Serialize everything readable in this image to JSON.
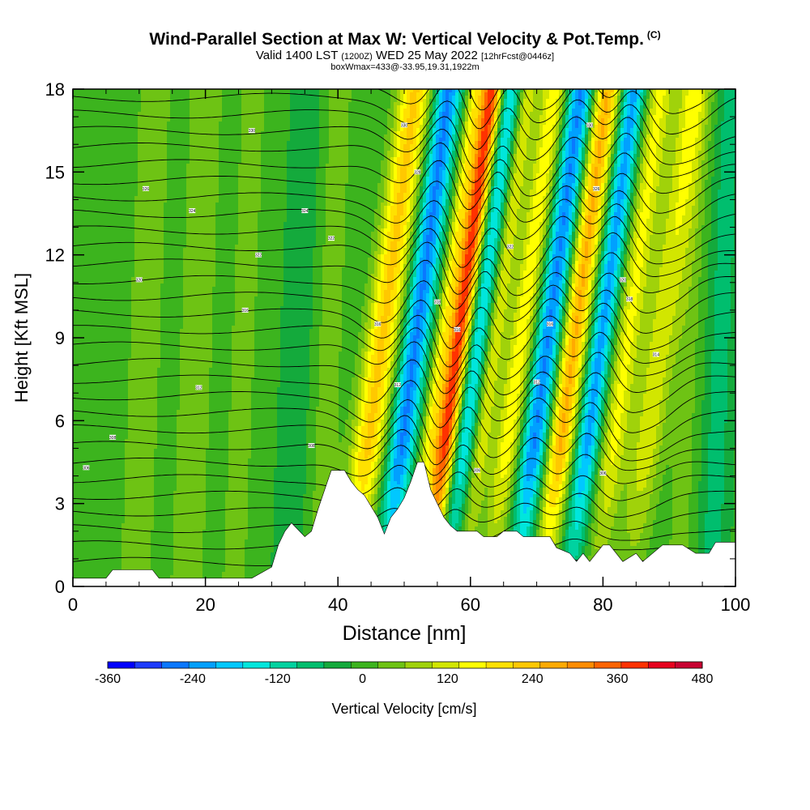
{
  "header": {
    "title": "Wind-Parallel Section at Max W: Vertical Velocity & Pot.Temp.",
    "copyright": "(C)",
    "valid_prefix": "Valid 1400 LST",
    "valid_z": "(1200Z)",
    "valid_date": "WED 25 May 2022",
    "valid_fcst": "[12hrFcst@0446z]",
    "subtitle2": "boxWmax=433@-33.95,19.31,1922m"
  },
  "chart_data": {
    "type": "heatmap",
    "xlabel": "Distance [nm]",
    "ylabel": "Height [Kft MSL]",
    "xlim": [
      0,
      100
    ],
    "ylim": [
      0,
      18
    ],
    "x_ticks": [
      0,
      20,
      40,
      60,
      80,
      100
    ],
    "x_tick_labels": [
      "0",
      "20",
      "40",
      "60",
      "80",
      "100"
    ],
    "y_ticks": [
      0,
      3,
      6,
      9,
      12,
      15,
      18
    ],
    "y_tick_labels": [
      "0",
      "3",
      "6",
      "9",
      "12",
      "15",
      "18"
    ],
    "colorbar": {
      "label": "Vertical Velocity [cm/s]",
      "min": -360,
      "max": 480,
      "step": 40,
      "tick_values": [
        -360,
        -240,
        -120,
        0,
        120,
        240,
        360,
        480
      ],
      "tick_labels": [
        "-360",
        "-240",
        "-120",
        "0",
        "120",
        "240",
        "360",
        "480"
      ],
      "colors": [
        "#0000ff",
        "#1e3cff",
        "#0a78ff",
        "#00a0ff",
        "#00c8ff",
        "#00e6dc",
        "#00d2a0",
        "#00be6e",
        "#14aa3c",
        "#3cb41e",
        "#6ec314",
        "#a0d20a",
        "#d2e600",
        "#ffff00",
        "#ffe100",
        "#ffc800",
        "#ffaa00",
        "#ff8c00",
        "#ff6400",
        "#ff3200",
        "#e6001e",
        "#c80032"
      ]
    },
    "terrain_heights_kft": [
      [
        0,
        0.3
      ],
      [
        5,
        0.3
      ],
      [
        6,
        0.6
      ],
      [
        12,
        0.6
      ],
      [
        13,
        0.3
      ],
      [
        25,
        0.3
      ],
      [
        27,
        0.3
      ],
      [
        30,
        0.7
      ],
      [
        31,
        1.5
      ],
      [
        32,
        2.0
      ],
      [
        33,
        2.3
      ],
      [
        35,
        1.8
      ],
      [
        36,
        2.0
      ],
      [
        37,
        2.8
      ],
      [
        38,
        3.5
      ],
      [
        39,
        4.2
      ],
      [
        41,
        4.2
      ],
      [
        42,
        3.8
      ],
      [
        43,
        3.5
      ],
      [
        44,
        3.3
      ],
      [
        45,
        2.9
      ],
      [
        46,
        2.5
      ],
      [
        47,
        1.9
      ],
      [
        48,
        2.5
      ],
      [
        49,
        2.8
      ],
      [
        50,
        3.2
      ],
      [
        51,
        3.8
      ],
      [
        52,
        4.5
      ],
      [
        53,
        4.5
      ],
      [
        54,
        3.5
      ],
      [
        55,
        3.0
      ],
      [
        56,
        2.5
      ],
      [
        57,
        2.2
      ],
      [
        58,
        2.0
      ],
      [
        61,
        2.0
      ],
      [
        62,
        1.8
      ],
      [
        64,
        1.8
      ],
      [
        65,
        2.0
      ],
      [
        67,
        2.0
      ],
      [
        68,
        1.8
      ],
      [
        72,
        1.8
      ],
      [
        73,
        1.4
      ],
      [
        75,
        1.2
      ],
      [
        76,
        0.9
      ],
      [
        77,
        1.2
      ],
      [
        78,
        0.9
      ],
      [
        80,
        1.5
      ],
      [
        81,
        1.5
      ],
      [
        83,
        0.9
      ],
      [
        85,
        1.2
      ],
      [
        86,
        0.9
      ],
      [
        89,
        1.5
      ],
      [
        92,
        1.5
      ],
      [
        94,
        1.2
      ],
      [
        96,
        1.2
      ],
      [
        97,
        1.6
      ],
      [
        100,
        1.6
      ]
    ],
    "theta_contour_labels": [
      {
        "x": 2,
        "y": 4.3,
        "text": "306"
      },
      {
        "x": 6,
        "y": 5.4,
        "text": "308"
      },
      {
        "x": 10,
        "y": 11.1,
        "text": "320"
      },
      {
        "x": 11,
        "y": 14.4,
        "text": "326"
      },
      {
        "x": 18,
        "y": 13.6,
        "text": "324"
      },
      {
        "x": 19,
        "y": 7.2,
        "text": "312"
      },
      {
        "x": 26,
        "y": 10.0,
        "text": "316"
      },
      {
        "x": 27,
        "y": 16.5,
        "text": "330"
      },
      {
        "x": 28,
        "y": 12.0,
        "text": "322"
      },
      {
        "x": 35,
        "y": 13.6,
        "text": "324"
      },
      {
        "x": 36,
        "y": 5.1,
        "text": "308"
      },
      {
        "x": 39,
        "y": 12.6,
        "text": "322"
      },
      {
        "x": 46,
        "y": 9.5,
        "text": "316"
      },
      {
        "x": 49,
        "y": 7.3,
        "text": "312"
      },
      {
        "x": 50,
        "y": 16.7,
        "text": "330"
      },
      {
        "x": 52,
        "y": 15.0,
        "text": "328"
      },
      {
        "x": 55,
        "y": 10.3,
        "text": "318"
      },
      {
        "x": 58,
        "y": 9.3,
        "text": "316"
      },
      {
        "x": 61,
        "y": 4.2,
        "text": "306"
      },
      {
        "x": 66,
        "y": 12.3,
        "text": "322"
      },
      {
        "x": 70,
        "y": 7.4,
        "text": "312"
      },
      {
        "x": 72,
        "y": 9.5,
        "text": "316"
      },
      {
        "x": 78,
        "y": 16.7,
        "text": "330"
      },
      {
        "x": 79,
        "y": 14.4,
        "text": "326"
      },
      {
        "x": 80,
        "y": 4.1,
        "text": "306"
      },
      {
        "x": 83,
        "y": 11.1,
        "text": "320"
      },
      {
        "x": 84,
        "y": 10.4,
        "text": "318"
      },
      {
        "x": 88,
        "y": 8.4,
        "text": "314"
      }
    ]
  }
}
